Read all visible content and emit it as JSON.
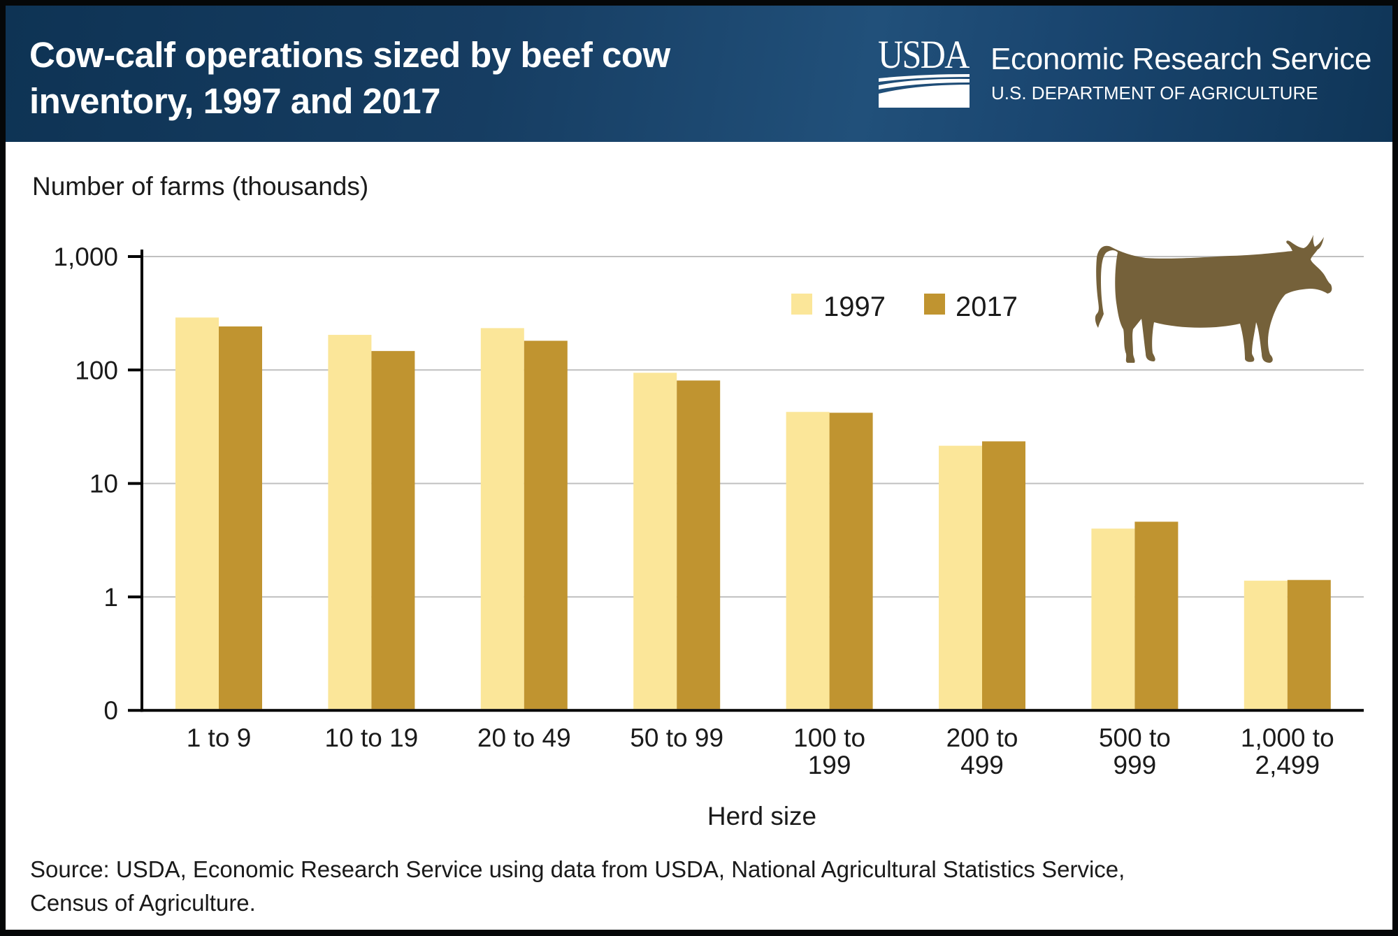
{
  "header": {
    "title_line1": "Cow-calf operations sized by beef cow",
    "title_line2": "inventory, 1997 and 2017",
    "logo_text": "USDA",
    "agency_name": "Economic Research Service",
    "department": "U.S. DEPARTMENT OF AGRICULTURE"
  },
  "colors": {
    "header_dark": "#0e3354",
    "header_light": "#21507a",
    "series_1997": "#fbe699",
    "series_2017": "#c09430",
    "cow": "#75613a",
    "gridline": "#c0c0c0"
  },
  "icons": {
    "cow": "cow-silhouette-icon",
    "logo": "usda-logo-icon"
  },
  "footer": {
    "source_line1": "Source: USDA, Economic Research Service using data from USDA, National Agricultural Statistics Service,",
    "source_line2": "Census of Agriculture."
  },
  "chart_data": {
    "type": "bar",
    "title": "Cow-calf operations sized by beef cow inventory, 1997 and 2017",
    "ylabel": "Number of farms (thousands)",
    "xlabel": "Herd size",
    "yscale": "log",
    "ylim": [
      0.1,
      1000
    ],
    "yticks": [
      {
        "value": 1000,
        "label": "1,000"
      },
      {
        "value": 100,
        "label": "100"
      },
      {
        "value": 10,
        "label": "10"
      },
      {
        "value": 1,
        "label": "1"
      },
      {
        "value": 0.1,
        "label": "0"
      }
    ],
    "grid": true,
    "legend_position": "top-right",
    "categories": [
      [
        "1 to 9"
      ],
      [
        "10 to 19"
      ],
      [
        "20 to 49"
      ],
      [
        "50 to 99"
      ],
      [
        "100 to",
        "199"
      ],
      [
        "200 to",
        "499"
      ],
      [
        "500 to",
        "999"
      ],
      [
        "1,000 to",
        "2,499"
      ]
    ],
    "series": [
      {
        "name": "1997",
        "color": "#fbe699",
        "values": [
          290,
          204,
          234,
          94.5,
          42.7,
          21.5,
          4.0,
          1.39
        ]
      },
      {
        "name": "2017",
        "color": "#c09430",
        "values": [
          242,
          147,
          181,
          80.8,
          42.0,
          23.5,
          4.6,
          1.41
        ]
      }
    ]
  }
}
